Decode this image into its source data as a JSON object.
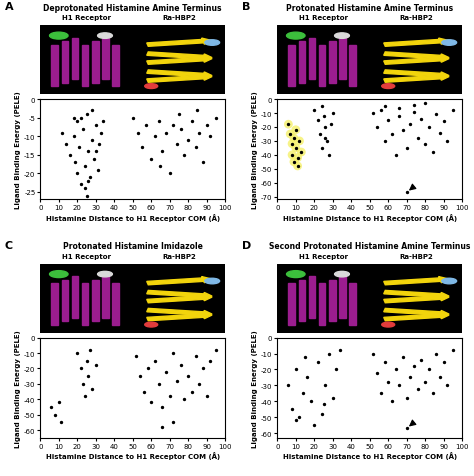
{
  "chart_data": [
    {
      "type": "scatter",
      "panel": "A",
      "title": "Deprotonated Histamine Amine Terminus",
      "protein_labels": [
        "H1 Receptor",
        "Ra-HBP2"
      ],
      "x_label": "Histamine Distance to H1 Receptor COM (Å)",
      "y_label": "Ligand Binding Energy (PELE)",
      "xlim": [
        0,
        100
      ],
      "xticks": [
        0,
        10,
        20,
        30,
        40,
        50,
        60,
        70,
        80,
        90,
        100
      ],
      "ylim": [
        -27,
        0
      ],
      "yticks": [
        -25,
        -20,
        -15,
        -10,
        -5,
        0
      ],
      "color": "#000000",
      "x": [
        12,
        14,
        16,
        18,
        19,
        20,
        21,
        22,
        23,
        24,
        25,
        26,
        27,
        28,
        29,
        30,
        31,
        32,
        33,
        34,
        22,
        25,
        28,
        24,
        20,
        26,
        30,
        18,
        50,
        53,
        55,
        57,
        60,
        62,
        64,
        66,
        68,
        70,
        72,
        74,
        76,
        78,
        80,
        82,
        84,
        86,
        88,
        90,
        92,
        95,
        65,
        75,
        85
      ],
      "y": [
        -9,
        -12,
        -15,
        -10,
        -17,
        -20,
        -13,
        -23,
        -8,
        -18,
        -26,
        -14,
        -21,
        -11,
        -16,
        -7,
        -19,
        -12,
        -9,
        -6,
        -5,
        -4,
        -3,
        -24,
        -6,
        -22,
        -14,
        -5,
        -5,
        -9,
        -13,
        -7,
        -16,
        -10,
        -6,
        -14,
        -9,
        -20,
        -7,
        -12,
        -8,
        -15,
        -11,
        -6,
        -13,
        -9,
        -17,
        -7,
        -10,
        -5,
        -18,
        -4,
        -3
      ]
    },
    {
      "type": "scatter",
      "panel": "B",
      "title": "Protonated Histamine Amine Terminus",
      "protein_labels": [
        "H1 Receptor",
        "Ra-HBP2"
      ],
      "x_label": "Histamine Distance to H1 Receptor COM (Å)",
      "y_label": "Ligand Binding Energy (PELE)",
      "xlim": [
        0,
        100
      ],
      "xticks": [
        0,
        10,
        20,
        30,
        40,
        50,
        60,
        70,
        80,
        90,
        100
      ],
      "ylim": [
        -72,
        0
      ],
      "yticks": [
        -70,
        -60,
        -50,
        -40,
        -30,
        -20,
        -10,
        0
      ],
      "color": "#000000",
      "x": [
        20,
        22,
        23,
        24,
        25,
        26,
        27,
        28,
        29,
        30,
        24,
        26,
        52,
        54,
        56,
        58,
        60,
        62,
        64,
        66,
        68,
        70,
        72,
        74,
        76,
        78,
        80,
        82,
        84,
        86,
        88,
        90,
        92,
        95,
        58,
        66,
        74,
        80,
        70
      ],
      "y": [
        -8,
        -15,
        -25,
        -35,
        -12,
        -20,
        -30,
        -40,
        -18,
        -10,
        -5,
        -28,
        -10,
        -20,
        -8,
        -30,
        -15,
        -25,
        -40,
        -12,
        -22,
        -35,
        -18,
        -9,
        -28,
        -14,
        -32,
        -20,
        -38,
        -11,
        -24,
        -16,
        -30,
        -8,
        -5,
        -6,
        -4,
        -3,
        -67
      ],
      "highlight": {
        "color": "#f5f06a",
        "x": [
          6,
          7,
          8,
          8,
          9,
          10,
          10,
          11,
          12,
          13,
          9,
          11
        ],
        "y": [
          -18,
          -25,
          -32,
          -40,
          -45,
          -22,
          -35,
          -48,
          -30,
          -38,
          -28,
          -42
        ]
      },
      "arrows": [
        {
          "x": 70,
          "y": -67
        }
      ]
    },
    {
      "type": "scatter",
      "panel": "C",
      "title": "Protonated Histamine Imidazole",
      "protein_labels": [
        "H1 Receptor",
        "Ra-HBP2"
      ],
      "x_label": "Histamine Distance to H1 Receptor COM (Å)",
      "y_label": "Ligand Binding Energy (PELE)",
      "xlim": [
        0,
        100
      ],
      "xticks": [
        0,
        10,
        20,
        30,
        40,
        50,
        60,
        70,
        80,
        90,
        100
      ],
      "ylim": [
        -65,
        0
      ],
      "yticks": [
        -60,
        -50,
        -40,
        -30,
        -20,
        -10,
        0
      ],
      "color": "#000000",
      "x": [
        6,
        8,
        10,
        11,
        20,
        22,
        23,
        24,
        25,
        26,
        27,
        28,
        30,
        52,
        54,
        56,
        58,
        60,
        62,
        64,
        66,
        68,
        70,
        72,
        74,
        76,
        78,
        80,
        82,
        84,
        86,
        88,
        90,
        92,
        95,
        66,
        72
      ],
      "y": [
        -45,
        -50,
        -42,
        -55,
        -10,
        -20,
        -30,
        -38,
        -15,
        -25,
        -8,
        -33,
        -18,
        -12,
        -25,
        -35,
        -20,
        -42,
        -15,
        -30,
        -45,
        -22,
        -38,
        -10,
        -28,
        -18,
        -40,
        -25,
        -35,
        -12,
        -30,
        -20,
        -38,
        -15,
        -8,
        -58,
        -55
      ]
    },
    {
      "type": "scatter",
      "panel": "D",
      "title": "Second Protonated Histamine Amine Terminus",
      "protein_labels": [
        "H1 Receptor",
        "Ra-HBP2"
      ],
      "x_label": "Histamine Distance to H1 Receptor COM (Å)",
      "y_label": "Ligand Binding Energy (PELE)",
      "xlim": [
        0,
        100
      ],
      "xticks": [
        0,
        10,
        20,
        30,
        40,
        50,
        60,
        70,
        80,
        90,
        100
      ],
      "ylim": [
        -63,
        0
      ],
      "yticks": [
        -60,
        -50,
        -40,
        -30,
        -20,
        -10,
        0
      ],
      "color": "#000000",
      "x": [
        6,
        8,
        10,
        12,
        14,
        16,
        18,
        20,
        22,
        24,
        26,
        28,
        30,
        32,
        34,
        10,
        15,
        25,
        52,
        54,
        56,
        58,
        60,
        62,
        64,
        66,
        68,
        70,
        72,
        74,
        76,
        78,
        80,
        82,
        84,
        86,
        88,
        90,
        92,
        95,
        70
      ],
      "y": [
        -30,
        -45,
        -20,
        -50,
        -35,
        -25,
        -40,
        -55,
        -15,
        -48,
        -30,
        -10,
        -38,
        -20,
        -8,
        -52,
        -12,
        -42,
        -10,
        -22,
        -35,
        -15,
        -28,
        -40,
        -20,
        -30,
        -12,
        -38,
        -25,
        -18,
        -32,
        -14,
        -28,
        -20,
        -35,
        -10,
        -25,
        -15,
        -30,
        -8,
        -57
      ],
      "arrows": [
        {
          "x": 70,
          "y": -57
        }
      ]
    }
  ]
}
